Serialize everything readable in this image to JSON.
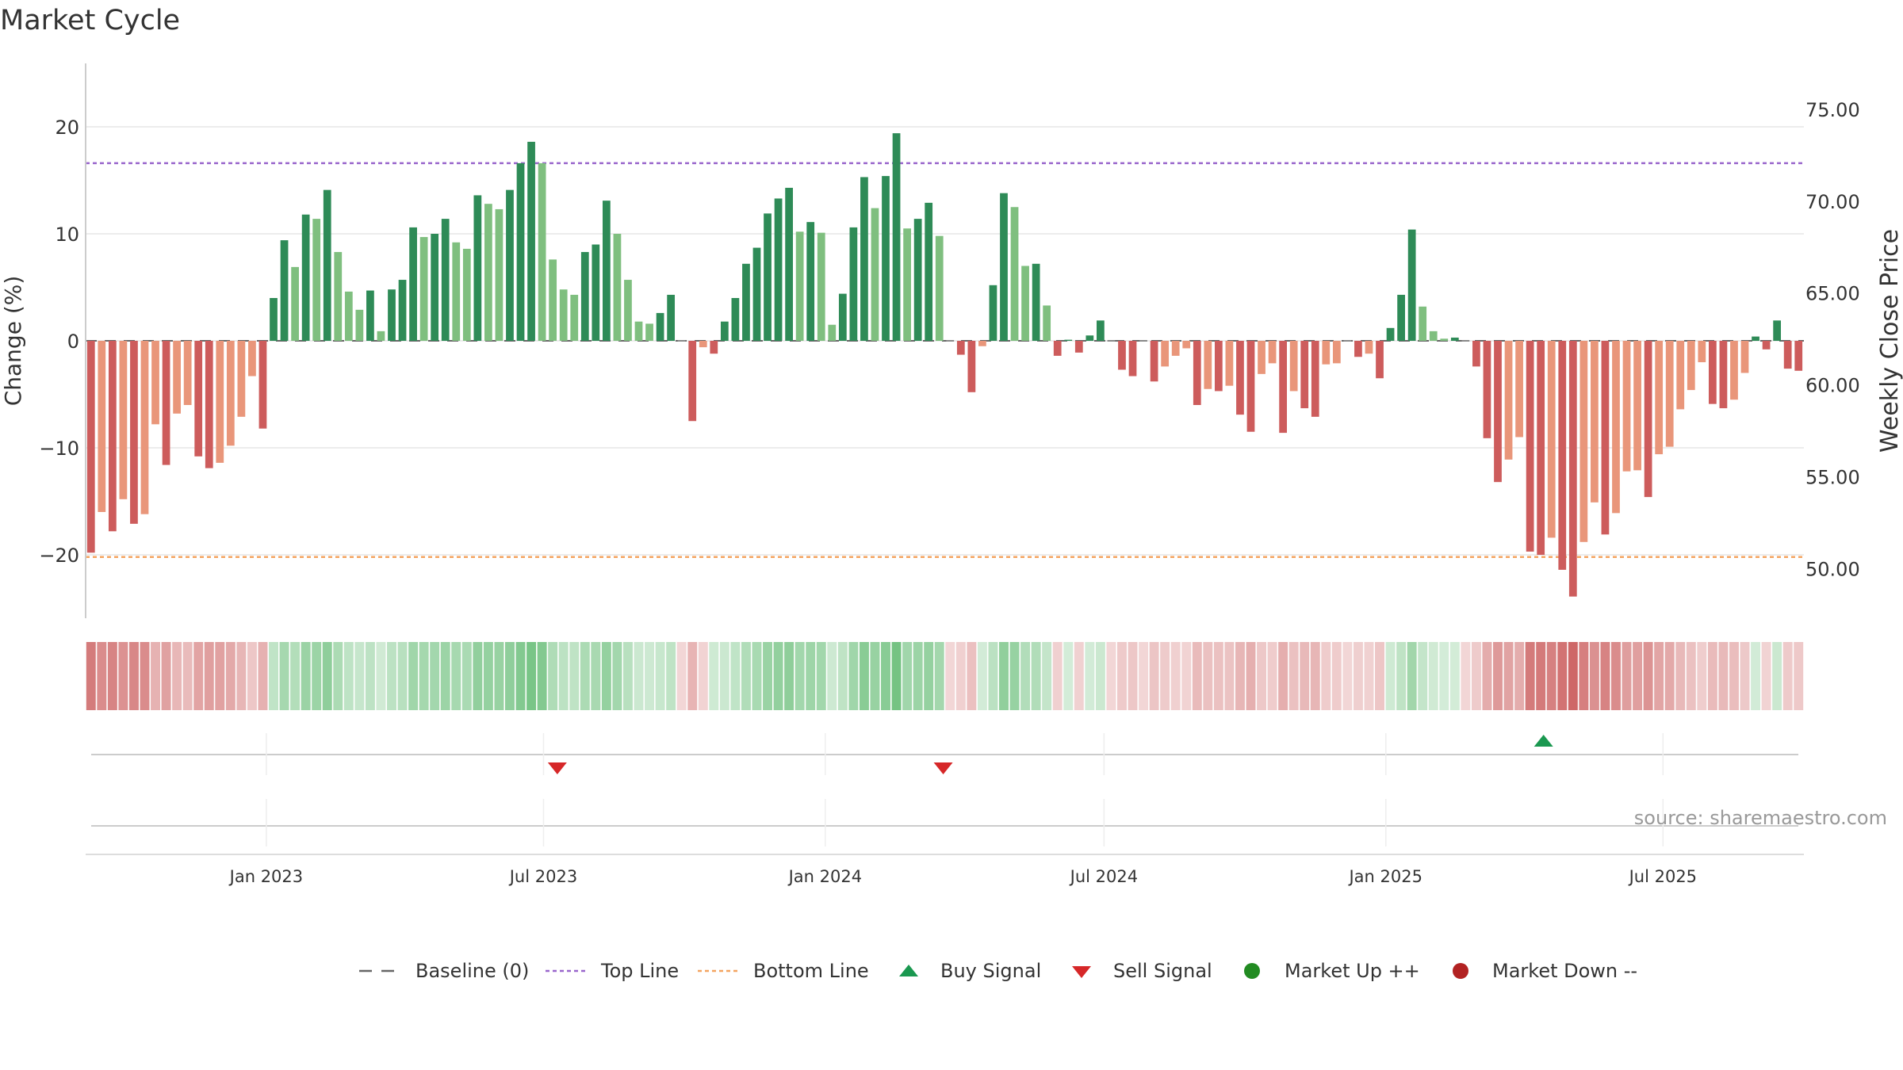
{
  "title": "Market Cycle",
  "source": "source: sharemaestro.com",
  "colors": {
    "up_strong": "#2e8b57",
    "up_light": "#7fbf7f",
    "down_strong": "#cd5c5c",
    "down_light": "#e9967a",
    "top_line": "#9966cc",
    "bottom_line": "#f4a460",
    "grid": "#e6e6e6",
    "buy": "#1a9850",
    "sell": "#d62728",
    "market_up": "#228b22",
    "market_down": "#b22222",
    "text": "#333333"
  },
  "chart_data": {
    "type": "bar",
    "title": "Market Cycle",
    "ylabel": "Change (%)",
    "y2label": "Weekly Close Price",
    "ylim": [
      -26,
      26
    ],
    "y2lim": [
      47.3,
      77.5
    ],
    "yticks": [
      20,
      10,
      0,
      -10,
      -20
    ],
    "ytick_labels": [
      "20",
      "10",
      "0",
      "−10",
      "−20"
    ],
    "y2ticks": [
      75,
      70,
      65,
      60,
      55,
      50
    ],
    "y2tick_labels": [
      "75.00",
      "70.00",
      "65.00",
      "60.00",
      "55.00",
      "50.00"
    ],
    "top_line": 16.6,
    "bottom_line": -20.2,
    "x_start": "2022-09-05",
    "x_end": "2025-10-01",
    "xticks": [
      {
        "date": "2023-01-01",
        "label": "Jan 2023"
      },
      {
        "date": "2023-07-01",
        "label": "Jul 2023"
      },
      {
        "date": "2024-01-01",
        "label": "Jan 2024"
      },
      {
        "date": "2024-07-01",
        "label": "Jul 2024"
      },
      {
        "date": "2025-01-01",
        "label": "Jan 2025"
      },
      {
        "date": "2025-07-01",
        "label": "Jul 2025"
      }
    ],
    "values": [
      -19.8,
      -16,
      -17.8,
      -14.8,
      -17.1,
      -16.2,
      -7.8,
      -11.6,
      -6.8,
      -6,
      -10.8,
      -11.9,
      -11.4,
      -9.8,
      -7.1,
      -3.3,
      -8.2,
      4,
      9.4,
      6.9,
      11.8,
      11.4,
      14.1,
      8.3,
      4.6,
      2.9,
      4.7,
      0.9,
      4.8,
      5.7,
      10.6,
      9.7,
      10,
      11.4,
      9.2,
      8.6,
      13.6,
      12.8,
      12.3,
      14.1,
      16.6,
      18.6,
      16.6,
      7.6,
      4.8,
      4.3,
      8.3,
      9,
      13.1,
      10,
      5.7,
      1.8,
      1.6,
      2.6,
      4.3,
      0,
      -7.5,
      -0.6,
      -1.2,
      1.8,
      4,
      7.2,
      8.7,
      11.9,
      13.3,
      14.3,
      10.2,
      11.1,
      10.1,
      1.5,
      4.4,
      10.6,
      15.3,
      12.4,
      15.4,
      19.4,
      10.5,
      11.4,
      12.9,
      9.8,
      0,
      -1.3,
      -4.8,
      -0.5,
      5.2,
      13.8,
      12.5,
      7,
      7.2,
      3.3,
      -1.4,
      0.1,
      -1.1,
      0.5,
      1.9,
      0,
      -2.7,
      -3.3,
      0,
      -3.8,
      -2.4,
      -1.4,
      -0.7,
      -6,
      -4.5,
      -4.7,
      -4.2,
      -6.9,
      -8.5,
      -3.1,
      -2.1,
      -8.6,
      -4.7,
      -6.3,
      -7.1,
      -2.2,
      -2.1,
      0,
      -1.5,
      -1.2,
      -3.5,
      1.2,
      4.3,
      10.4,
      3.2,
      0.9,
      0.2,
      0.3,
      0,
      -2.4,
      -9.1,
      -13.2,
      -11.1,
      -9,
      -19.7,
      -20,
      -18.4,
      -21.4,
      -23.9,
      -18.8,
      -15.1,
      -18.1,
      -16.1,
      -12.2,
      -12.1,
      -14.6,
      -10.6,
      -9.9,
      -6.4,
      -4.6,
      -2,
      -5.9,
      -6.3,
      -5.5,
      -3,
      0.4,
      -0.8,
      1.9,
      -2.6,
      -2.8
    ],
    "weeks_shading": [
      "d",
      "d",
      "d",
      "d",
      "d",
      "d",
      "d",
      "d",
      "d",
      "d",
      "d",
      "d",
      "d",
      "d",
      "d",
      "d",
      "d",
      "u",
      "u",
      "u",
      "u",
      "u",
      "u",
      "u",
      "u",
      "u",
      "u",
      "u",
      "u",
      "u",
      "u",
      "u",
      "u",
      "u",
      "u",
      "u",
      "u",
      "u",
      "u",
      "u",
      "u",
      "u",
      "u",
      "u",
      "u",
      "u",
      "u",
      "u",
      "u",
      "u",
      "u",
      "u",
      "u",
      "u",
      "u",
      "d",
      "d",
      "d",
      "u",
      "u",
      "u",
      "u",
      "u",
      "u",
      "u",
      "u",
      "u",
      "u",
      "u",
      "u",
      "u",
      "u",
      "u",
      "u",
      "u",
      "u",
      "u",
      "u",
      "u",
      "u",
      "d",
      "d",
      "d",
      "u",
      "u",
      "u",
      "u",
      "u",
      "u",
      "u",
      "d",
      "u",
      "d",
      "u",
      "u",
      "d",
      "d",
      "d",
      "d",
      "d",
      "d",
      "d",
      "d",
      "d",
      "d",
      "d",
      "d",
      "d",
      "d",
      "d",
      "d",
      "d",
      "d",
      "d",
      "d",
      "d",
      "d",
      "d",
      "d",
      "d",
      "d",
      "u",
      "u",
      "u",
      "u",
      "u",
      "u",
      "u",
      "d",
      "d",
      "d",
      "d",
      "d",
      "d",
      "d",
      "d",
      "d",
      "d",
      "d",
      "d",
      "d",
      "d",
      "d",
      "d",
      "d",
      "d",
      "d",
      "d",
      "d",
      "d",
      "d",
      "d",
      "d",
      "d",
      "d",
      "u",
      "d",
      "u",
      "d",
      "d"
    ],
    "buy_signals": [
      "2025-04-14"
    ],
    "sell_signals": [
      "2023-07-10",
      "2024-03-18"
    ],
    "source": "source: sharemaestro.com"
  },
  "legend": {
    "baseline": "Baseline (0)",
    "top_line": "Top Line",
    "bottom_line": "Bottom Line",
    "buy": "Buy Signal",
    "sell": "Sell Signal",
    "market_up": "Market Up ++",
    "market_down": "Market Down --"
  }
}
